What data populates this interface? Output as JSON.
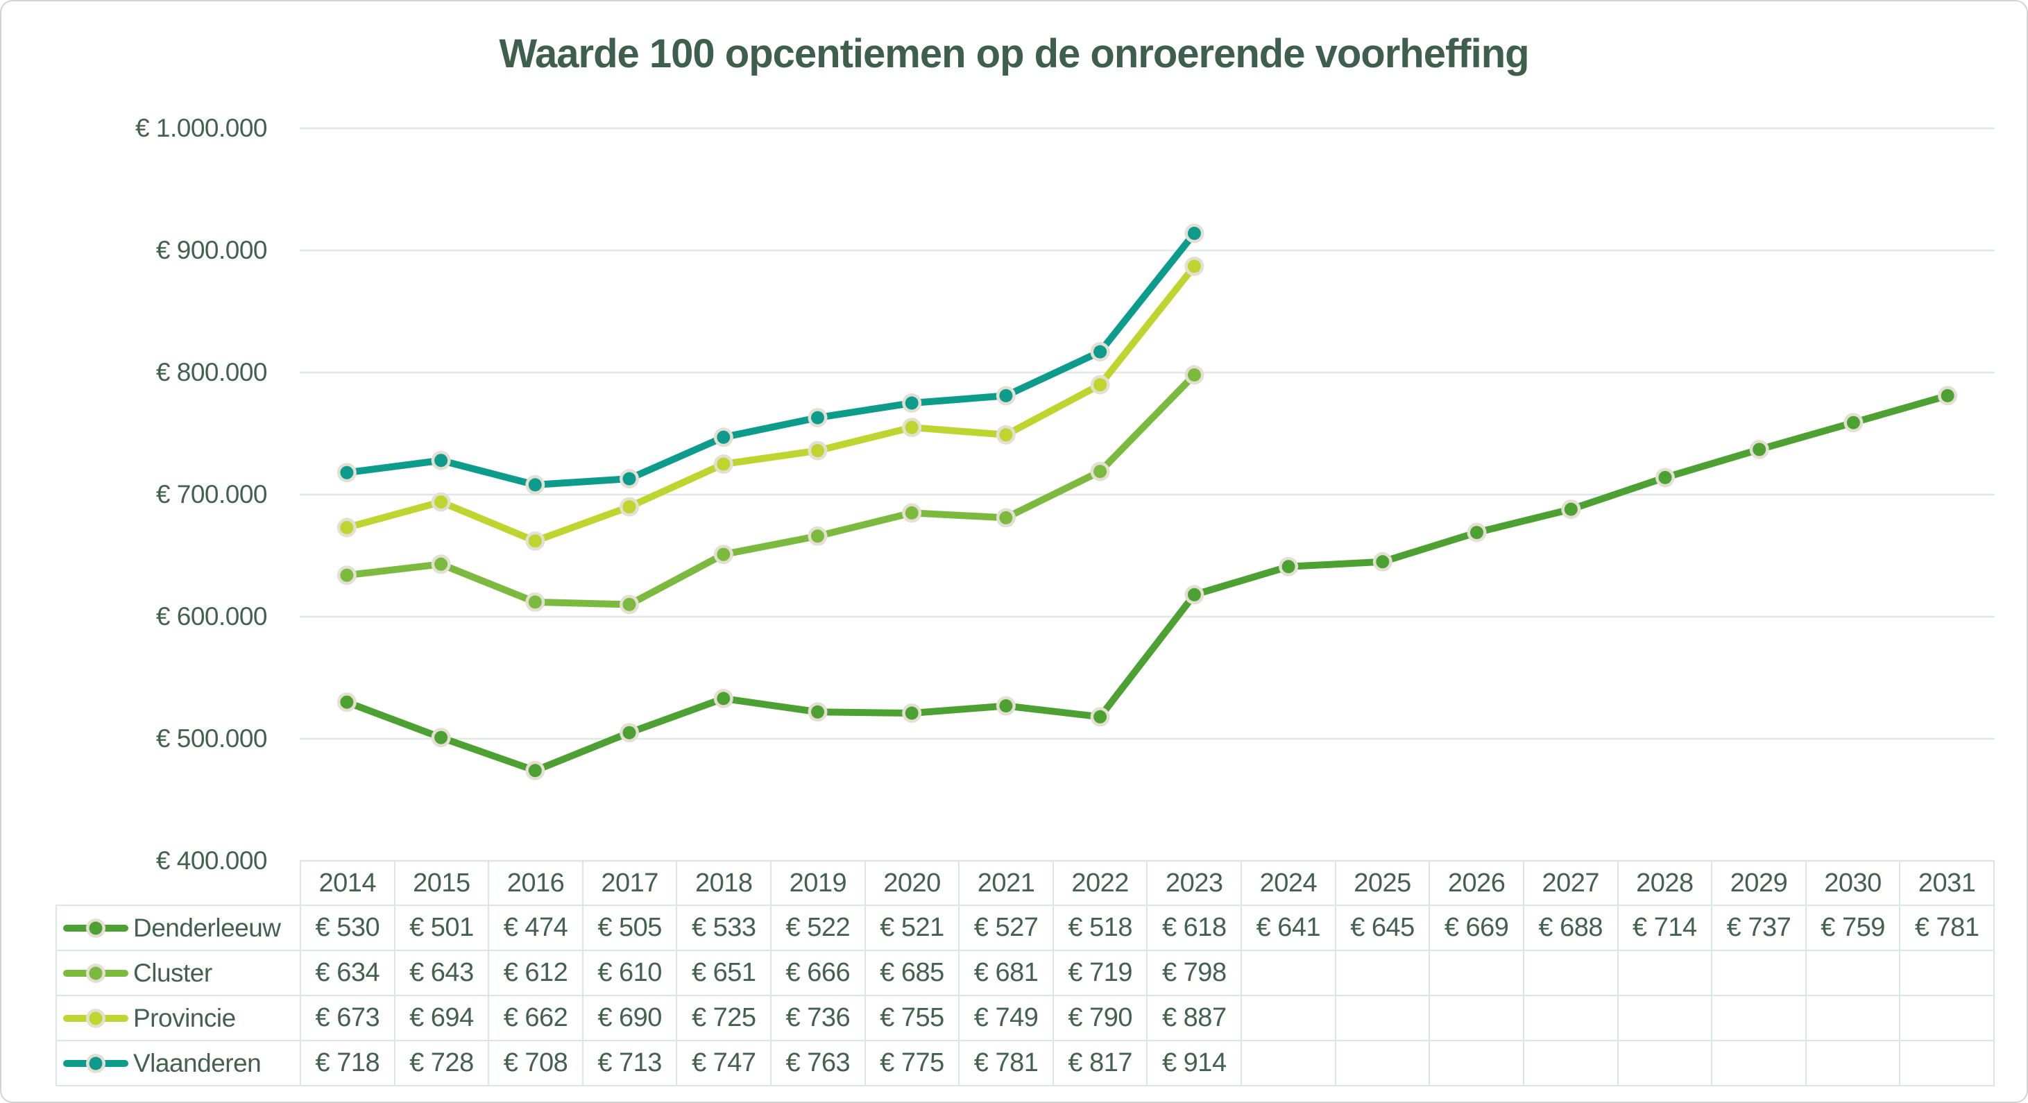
{
  "chart_data": {
    "type": "line",
    "title": "Waarde 100 opcentiemen op de onroerende voorheffing",
    "categories": [
      "2014",
      "2015",
      "2016",
      "2017",
      "2018",
      "2019",
      "2020",
      "2021",
      "2022",
      "2023",
      "2024",
      "2025",
      "2026",
      "2027",
      "2028",
      "2029",
      "2030",
      "2031"
    ],
    "series": [
      {
        "name": "Denderleeuw",
        "color": "#4da133",
        "values": [
          530,
          501,
          474,
          505,
          533,
          522,
          521,
          527,
          518,
          618,
          641,
          645,
          669,
          688,
          714,
          737,
          759,
          781
        ]
      },
      {
        "name": "Cluster",
        "color": "#7cb93f",
        "values": [
          634,
          643,
          612,
          610,
          651,
          666,
          685,
          681,
          719,
          798,
          null,
          null,
          null,
          null,
          null,
          null,
          null,
          null
        ]
      },
      {
        "name": "Provincie",
        "color": "#bed42f",
        "values": [
          673,
          694,
          662,
          690,
          725,
          736,
          755,
          749,
          790,
          887,
          null,
          null,
          null,
          null,
          null,
          null,
          null,
          null
        ]
      },
      {
        "name": "Vlaanderen",
        "color": "#0d9b8b",
        "values": [
          718,
          728,
          708,
          713,
          747,
          763,
          775,
          781,
          817,
          914,
          null,
          null,
          null,
          null,
          null,
          null,
          null,
          null
        ]
      }
    ],
    "value_prefix": "€ ",
    "value_unit_multiplier": 1000,
    "y_axis": {
      "min": 400000,
      "max": 1000000,
      "step": 100000,
      "tick_labels": [
        "€ 1.000.000",
        "€ 900.000",
        "€ 800.000",
        "€ 700.000",
        "€ 600.000",
        "€ 500.000",
        "€ 400.000"
      ]
    },
    "grid": "horizontal",
    "legend_position": "table-left"
  },
  "styles": {
    "title_color": "#3e5e4e",
    "text_color": "#44604f",
    "gridline_color": "#e0e8e5",
    "table_border_color": "#dbe6e0",
    "marker_ring_color": "#e4dfd2",
    "background_color": "#ffffff"
  }
}
